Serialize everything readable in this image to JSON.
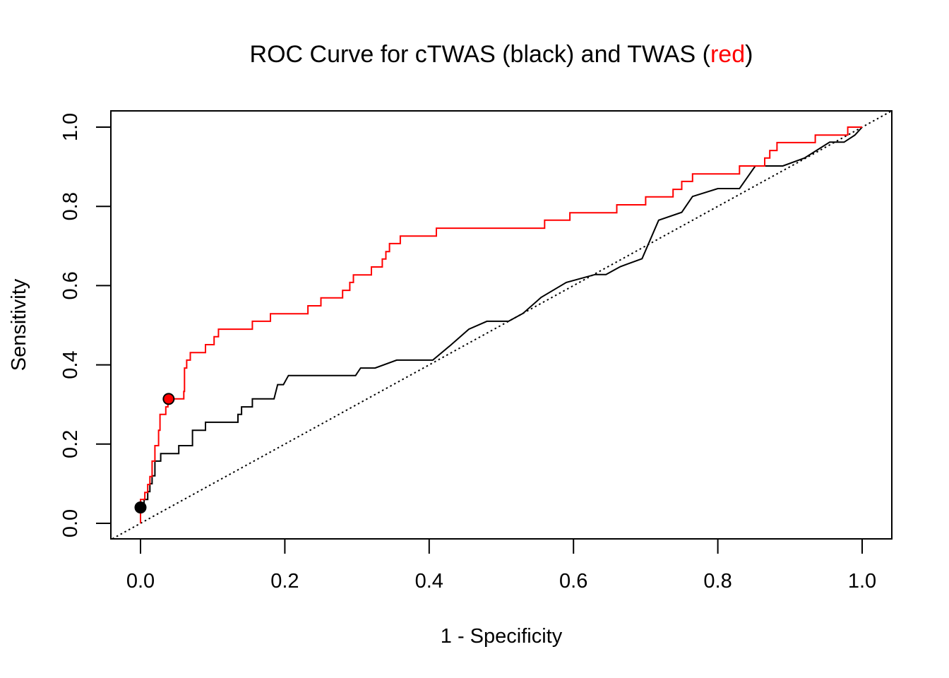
{
  "chart_data": {
    "type": "line",
    "title": {
      "prefix": "ROC Curve for cTWAS (black) and TWAS (",
      "highlight": "red",
      "suffix": ")",
      "highlight_color": "#ff0000"
    },
    "xlabel": "1 - Specificity",
    "ylabel": "Sensitivity",
    "xlim": [
      0,
      1
    ],
    "ylim": [
      0,
      1
    ],
    "xticks": [
      "0.0",
      "0.2",
      "0.4",
      "0.6",
      "0.8",
      "1.0"
    ],
    "yticks": [
      "0.0",
      "0.2",
      "0.4",
      "0.6",
      "0.8",
      "1.0"
    ],
    "grid": false,
    "legend": "none",
    "reference_line": {
      "style": "dotted",
      "color": "#000000",
      "points": [
        [
          0,
          0
        ],
        [
          1,
          1
        ]
      ]
    },
    "series": [
      {
        "color": "#000000",
        "points": [
          [
            0.0,
            0.0
          ],
          [
            0.0,
            0.04
          ],
          [
            0.005,
            0.04
          ],
          [
            0.005,
            0.06
          ],
          [
            0.01,
            0.06
          ],
          [
            0.01,
            0.08
          ],
          [
            0.013,
            0.08
          ],
          [
            0.013,
            0.1
          ],
          [
            0.016,
            0.1
          ],
          [
            0.016,
            0.12
          ],
          [
            0.02,
            0.12
          ],
          [
            0.02,
            0.157
          ],
          [
            0.028,
            0.157
          ],
          [
            0.028,
            0.176
          ],
          [
            0.053,
            0.176
          ],
          [
            0.053,
            0.196
          ],
          [
            0.072,
            0.196
          ],
          [
            0.072,
            0.235
          ],
          [
            0.09,
            0.235
          ],
          [
            0.09,
            0.255
          ],
          [
            0.135,
            0.255
          ],
          [
            0.135,
            0.275
          ],
          [
            0.14,
            0.275
          ],
          [
            0.14,
            0.294
          ],
          [
            0.155,
            0.294
          ],
          [
            0.155,
            0.314
          ],
          [
            0.185,
            0.314
          ],
          [
            0.19,
            0.35
          ],
          [
            0.198,
            0.35
          ],
          [
            0.205,
            0.373
          ],
          [
            0.298,
            0.373
          ],
          [
            0.305,
            0.392
          ],
          [
            0.325,
            0.392
          ],
          [
            0.355,
            0.412
          ],
          [
            0.405,
            0.412
          ],
          [
            0.43,
            0.45
          ],
          [
            0.455,
            0.49
          ],
          [
            0.48,
            0.51
          ],
          [
            0.51,
            0.51
          ],
          [
            0.53,
            0.53
          ],
          [
            0.555,
            0.57
          ],
          [
            0.59,
            0.608
          ],
          [
            0.63,
            0.628
          ],
          [
            0.645,
            0.628
          ],
          [
            0.665,
            0.648
          ],
          [
            0.695,
            0.668
          ],
          [
            0.718,
            0.765
          ],
          [
            0.75,
            0.785
          ],
          [
            0.765,
            0.825
          ],
          [
            0.8,
            0.845
          ],
          [
            0.83,
            0.845
          ],
          [
            0.852,
            0.902
          ],
          [
            0.89,
            0.902
          ],
          [
            0.92,
            0.922
          ],
          [
            0.955,
            0.962
          ],
          [
            0.975,
            0.962
          ],
          [
            0.99,
            0.98
          ],
          [
            1.0,
            1.0
          ]
        ],
        "markers": [
          [
            0.0,
            0.04
          ]
        ]
      },
      {
        "color": "#ff0000",
        "points": [
          [
            0.0,
            0.0
          ],
          [
            0.0,
            0.06
          ],
          [
            0.006,
            0.06
          ],
          [
            0.006,
            0.078
          ],
          [
            0.01,
            0.078
          ],
          [
            0.01,
            0.098
          ],
          [
            0.013,
            0.098
          ],
          [
            0.013,
            0.118
          ],
          [
            0.016,
            0.118
          ],
          [
            0.016,
            0.157
          ],
          [
            0.02,
            0.157
          ],
          [
            0.02,
            0.196
          ],
          [
            0.025,
            0.196
          ],
          [
            0.025,
            0.235
          ],
          [
            0.027,
            0.235
          ],
          [
            0.027,
            0.275
          ],
          [
            0.035,
            0.275
          ],
          [
            0.035,
            0.294
          ],
          [
            0.038,
            0.294
          ],
          [
            0.038,
            0.314
          ],
          [
            0.06,
            0.314
          ],
          [
            0.06,
            0.333
          ],
          [
            0.061,
            0.333
          ],
          [
            0.061,
            0.392
          ],
          [
            0.064,
            0.392
          ],
          [
            0.064,
            0.412
          ],
          [
            0.069,
            0.412
          ],
          [
            0.069,
            0.431
          ],
          [
            0.09,
            0.431
          ],
          [
            0.09,
            0.451
          ],
          [
            0.102,
            0.451
          ],
          [
            0.102,
            0.471
          ],
          [
            0.108,
            0.471
          ],
          [
            0.108,
            0.49
          ],
          [
            0.155,
            0.49
          ],
          [
            0.155,
            0.51
          ],
          [
            0.18,
            0.51
          ],
          [
            0.18,
            0.529
          ],
          [
            0.232,
            0.529
          ],
          [
            0.232,
            0.549
          ],
          [
            0.25,
            0.549
          ],
          [
            0.25,
            0.569
          ],
          [
            0.28,
            0.569
          ],
          [
            0.28,
            0.588
          ],
          [
            0.29,
            0.588
          ],
          [
            0.29,
            0.608
          ],
          [
            0.295,
            0.608
          ],
          [
            0.295,
            0.627
          ],
          [
            0.32,
            0.627
          ],
          [
            0.32,
            0.647
          ],
          [
            0.335,
            0.647
          ],
          [
            0.335,
            0.667
          ],
          [
            0.34,
            0.667
          ],
          [
            0.34,
            0.686
          ],
          [
            0.345,
            0.686
          ],
          [
            0.345,
            0.706
          ],
          [
            0.36,
            0.706
          ],
          [
            0.36,
            0.725
          ],
          [
            0.41,
            0.725
          ],
          [
            0.41,
            0.745
          ],
          [
            0.56,
            0.745
          ],
          [
            0.56,
            0.765
          ],
          [
            0.595,
            0.765
          ],
          [
            0.595,
            0.784
          ],
          [
            0.66,
            0.784
          ],
          [
            0.66,
            0.804
          ],
          [
            0.7,
            0.804
          ],
          [
            0.7,
            0.824
          ],
          [
            0.738,
            0.824
          ],
          [
            0.738,
            0.843
          ],
          [
            0.75,
            0.843
          ],
          [
            0.75,
            0.863
          ],
          [
            0.765,
            0.863
          ],
          [
            0.765,
            0.882
          ],
          [
            0.83,
            0.882
          ],
          [
            0.83,
            0.902
          ],
          [
            0.865,
            0.902
          ],
          [
            0.865,
            0.922
          ],
          [
            0.872,
            0.922
          ],
          [
            0.872,
            0.941
          ],
          [
            0.882,
            0.941
          ],
          [
            0.882,
            0.961
          ],
          [
            0.935,
            0.961
          ],
          [
            0.935,
            0.98
          ],
          [
            0.98,
            0.98
          ],
          [
            0.98,
            1.0
          ],
          [
            1.0,
            1.0
          ]
        ],
        "markers": [
          [
            0.039,
            0.314
          ]
        ]
      }
    ]
  }
}
